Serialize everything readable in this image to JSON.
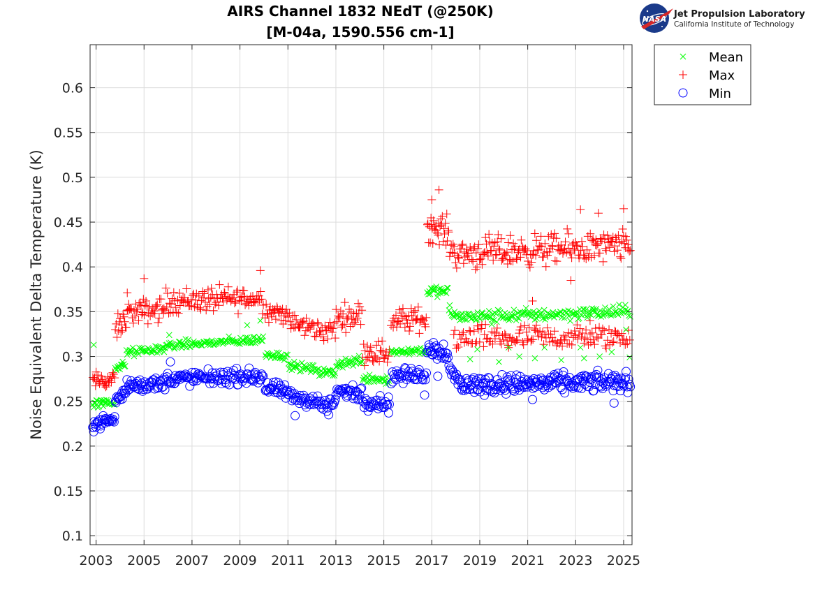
{
  "logo": {
    "line1": "Jet Propulsion Laboratory",
    "line2": "California Institute of Technology",
    "badge_text": "NASA",
    "badge_color": "#1a3a8a",
    "accent_color": "#d62828"
  },
  "chart_data": {
    "type": "scatter",
    "title": [
      "AIRS Channel 1832 NEdT (@250K)",
      "[M-04a, 1590.556 cm-1]"
    ],
    "xlabel": "",
    "ylabel": "Noise Equivalent Delta Temperature (K)",
    "xlim": [
      2002.75,
      2025.35
    ],
    "ylim": [
      0.09,
      0.648
    ],
    "xticks": [
      2003,
      2005,
      2007,
      2009,
      2011,
      2013,
      2015,
      2017,
      2019,
      2021,
      2023,
      2025
    ],
    "yticks": [
      0.1,
      0.15,
      0.2,
      0.25,
      0.3,
      0.35,
      0.4,
      0.45,
      0.5,
      0.55,
      0.6
    ],
    "grid": true,
    "legend_position": "outside-top-right",
    "series": [
      {
        "name": "Mean",
        "marker": "x",
        "color": "#00ff00",
        "segments": [
          {
            "x0": 2002.85,
            "x1": 2003.8,
            "y0": 0.247,
            "y1": 0.249,
            "spread": 0.004,
            "n": 26
          },
          {
            "x0": 2003.8,
            "x1": 2004.25,
            "y0": 0.287,
            "y1": 0.291,
            "spread": 0.004,
            "n": 12
          },
          {
            "x0": 2004.25,
            "x1": 2005.9,
            "y0": 0.304,
            "y1": 0.309,
            "spread": 0.004,
            "n": 42
          },
          {
            "x0": 2005.9,
            "x1": 2010.0,
            "y0": 0.312,
            "y1": 0.319,
            "spread": 0.004,
            "n": 100
          },
          {
            "x0": 2010.05,
            "x1": 2011.0,
            "y0": 0.303,
            "y1": 0.3,
            "spread": 0.004,
            "n": 24
          },
          {
            "x0": 2011.0,
            "x1": 2012.3,
            "y0": 0.29,
            "y1": 0.285,
            "spread": 0.004,
            "n": 32
          },
          {
            "x0": 2012.3,
            "x1": 2013.0,
            "y0": 0.281,
            "y1": 0.283,
            "spread": 0.004,
            "n": 18
          },
          {
            "x0": 2013.0,
            "x1": 2014.1,
            "y0": 0.291,
            "y1": 0.296,
            "spread": 0.005,
            "n": 28
          },
          {
            "x0": 2014.1,
            "x1": 2015.25,
            "y0": 0.277,
            "y1": 0.274,
            "spread": 0.005,
            "n": 28
          },
          {
            "x0": 2015.3,
            "x1": 2016.8,
            "y0": 0.305,
            "y1": 0.307,
            "spread": 0.004,
            "n": 38
          },
          {
            "x0": 2016.8,
            "x1": 2017.7,
            "y0": 0.373,
            "y1": 0.372,
            "spread": 0.005,
            "n": 24
          },
          {
            "x0": 2017.7,
            "x1": 2018.2,
            "y0": 0.352,
            "y1": 0.342,
            "spread": 0.005,
            "n": 12
          },
          {
            "x0": 2018.2,
            "x1": 2025.3,
            "y0": 0.344,
            "y1": 0.35,
            "spread": 0.006,
            "n": 170
          }
        ],
        "outliers": [
          {
            "x": 2002.9,
            "y": 0.313
          },
          {
            "x": 2006.05,
            "y": 0.324
          },
          {
            "x": 2009.3,
            "y": 0.335
          },
          {
            "x": 2009.85,
            "y": 0.34
          },
          {
            "x": 2018.9,
            "y": 0.308
          },
          {
            "x": 2019.5,
            "y": 0.336
          },
          {
            "x": 2020.2,
            "y": 0.31
          },
          {
            "x": 2020.65,
            "y": 0.3
          },
          {
            "x": 2021.7,
            "y": 0.31
          },
          {
            "x": 2023.2,
            "y": 0.31
          },
          {
            "x": 2023.35,
            "y": 0.298
          },
          {
            "x": 2024.5,
            "y": 0.305
          },
          {
            "x": 2025.1,
            "y": 0.33
          },
          {
            "x": 2025.25,
            "y": 0.299
          },
          {
            "x": 2018.6,
            "y": 0.297
          },
          {
            "x": 2019.8,
            "y": 0.294
          },
          {
            "x": 2021.3,
            "y": 0.298
          },
          {
            "x": 2022.4,
            "y": 0.296
          },
          {
            "x": 2024.0,
            "y": 0.3
          }
        ]
      },
      {
        "name": "Max",
        "marker": "+",
        "color": "#ff0000",
        "segments": [
          {
            "x0": 2002.85,
            "x1": 2003.8,
            "y0": 0.272,
            "y1": 0.274,
            "spread": 0.009,
            "n": 26
          },
          {
            "x0": 2003.8,
            "x1": 2004.25,
            "y0": 0.33,
            "y1": 0.34,
            "spread": 0.012,
            "n": 14
          },
          {
            "x0": 2004.25,
            "x1": 2005.9,
            "y0": 0.348,
            "y1": 0.353,
            "spread": 0.012,
            "n": 46
          },
          {
            "x0": 2005.9,
            "x1": 2010.0,
            "y0": 0.362,
            "y1": 0.365,
            "spread": 0.012,
            "n": 110
          },
          {
            "x0": 2010.05,
            "x1": 2011.0,
            "y0": 0.352,
            "y1": 0.347,
            "spread": 0.01,
            "n": 28
          },
          {
            "x0": 2011.0,
            "x1": 2012.3,
            "y0": 0.338,
            "y1": 0.33,
            "spread": 0.01,
            "n": 34
          },
          {
            "x0": 2012.3,
            "x1": 2013.0,
            "y0": 0.328,
            "y1": 0.33,
            "spread": 0.01,
            "n": 18
          },
          {
            "x0": 2013.0,
            "x1": 2014.1,
            "y0": 0.343,
            "y1": 0.347,
            "spread": 0.012,
            "n": 30
          },
          {
            "x0": 2014.1,
            "x1": 2015.25,
            "y0": 0.307,
            "y1": 0.303,
            "spread": 0.012,
            "n": 30
          },
          {
            "x0": 2015.3,
            "x1": 2016.8,
            "y0": 0.34,
            "y1": 0.342,
            "spread": 0.012,
            "n": 40
          },
          {
            "x0": 2016.8,
            "x1": 2017.7,
            "y0": 0.445,
            "y1": 0.44,
            "spread": 0.014,
            "n": 30
          },
          {
            "x0": 2017.7,
            "x1": 2018.2,
            "y0": 0.423,
            "y1": 0.412,
            "spread": 0.014,
            "n": 14
          },
          {
            "x0": 2018.2,
            "x1": 2025.3,
            "y0": 0.415,
            "y1": 0.423,
            "spread": 0.015,
            "n": 200
          },
          {
            "x0": 2017.9,
            "x1": 2025.3,
            "y0": 0.32,
            "y1": 0.322,
            "spread": 0.012,
            "n": 150
          }
        ],
        "outliers": [
          {
            "x": 2004.3,
            "y": 0.371
          },
          {
            "x": 2005.0,
            "y": 0.387
          },
          {
            "x": 2009.85,
            "y": 0.396
          },
          {
            "x": 2017.3,
            "y": 0.486
          },
          {
            "x": 2017.0,
            "y": 0.475
          },
          {
            "x": 2023.2,
            "y": 0.464
          },
          {
            "x": 2023.95,
            "y": 0.46
          },
          {
            "x": 2025.0,
            "y": 0.465
          },
          {
            "x": 2022.8,
            "y": 0.385
          },
          {
            "x": 2020.2,
            "y": 0.31
          },
          {
            "x": 2021.2,
            "y": 0.362
          },
          {
            "x": 2023.6,
            "y": 0.34
          }
        ]
      },
      {
        "name": "Min",
        "marker": "o",
        "color": "#0000ff",
        "segments": [
          {
            "x0": 2002.85,
            "x1": 2003.8,
            "y0": 0.225,
            "y1": 0.23,
            "spread": 0.005,
            "n": 28
          },
          {
            "x0": 2003.8,
            "x1": 2004.25,
            "y0": 0.25,
            "y1": 0.26,
            "spread": 0.007,
            "n": 14
          },
          {
            "x0": 2004.25,
            "x1": 2005.9,
            "y0": 0.268,
            "y1": 0.27,
            "spread": 0.007,
            "n": 46
          },
          {
            "x0": 2005.9,
            "x1": 2010.0,
            "y0": 0.275,
            "y1": 0.278,
            "spread": 0.007,
            "n": 110
          },
          {
            "x0": 2010.05,
            "x1": 2011.0,
            "y0": 0.265,
            "y1": 0.26,
            "spread": 0.007,
            "n": 28
          },
          {
            "x0": 2011.0,
            "x1": 2012.3,
            "y0": 0.255,
            "y1": 0.25,
            "spread": 0.007,
            "n": 34
          },
          {
            "x0": 2012.3,
            "x1": 2013.0,
            "y0": 0.245,
            "y1": 0.247,
            "spread": 0.007,
            "n": 18
          },
          {
            "x0": 2013.0,
            "x1": 2014.1,
            "y0": 0.262,
            "y1": 0.258,
            "spread": 0.007,
            "n": 30
          },
          {
            "x0": 2014.1,
            "x1": 2015.25,
            "y0": 0.25,
            "y1": 0.248,
            "spread": 0.007,
            "n": 30
          },
          {
            "x0": 2015.3,
            "x1": 2016.8,
            "y0": 0.278,
            "y1": 0.28,
            "spread": 0.007,
            "n": 40
          },
          {
            "x0": 2016.8,
            "x1": 2017.7,
            "y0": 0.31,
            "y1": 0.305,
            "spread": 0.009,
            "n": 28
          },
          {
            "x0": 2017.7,
            "x1": 2018.2,
            "y0": 0.285,
            "y1": 0.27,
            "spread": 0.009,
            "n": 14
          },
          {
            "x0": 2018.2,
            "x1": 2025.3,
            "y0": 0.268,
            "y1": 0.272,
            "spread": 0.009,
            "n": 210
          }
        ],
        "outliers": [
          {
            "x": 2002.9,
            "y": 0.216
          },
          {
            "x": 2006.1,
            "y": 0.294
          },
          {
            "x": 2011.3,
            "y": 0.234
          },
          {
            "x": 2012.7,
            "y": 0.235
          },
          {
            "x": 2015.2,
            "y": 0.237
          },
          {
            "x": 2016.7,
            "y": 0.257
          },
          {
            "x": 2017.25,
            "y": 0.278
          },
          {
            "x": 2021.2,
            "y": 0.252
          },
          {
            "x": 2024.6,
            "y": 0.248
          }
        ]
      }
    ]
  }
}
